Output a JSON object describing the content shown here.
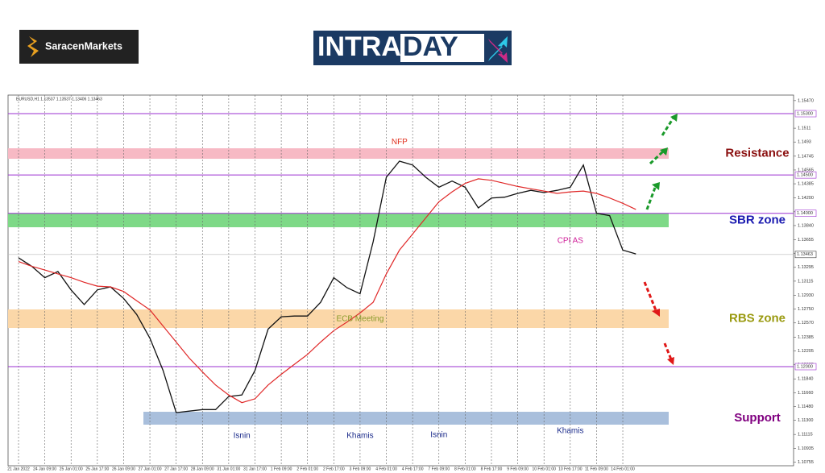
{
  "header": {
    "broker_logo": "SaracenMarkets",
    "brand_left": "INTRA",
    "brand_right": "DAY"
  },
  "chart_data": {
    "type": "line",
    "title": "EURUSD,H1 1.13537 1.13537 1.13406 1.13463",
    "categories": [
      "21 Jan 2022",
      null,
      "24 Jan 09:00",
      null,
      "25 Jan 01:00",
      null,
      "25 Jan 17:00",
      null,
      "26 Jan 09:00",
      null,
      "27 Jan 01:00",
      null,
      "27 Jan 17:00",
      null,
      "28 Jan 09:00",
      null,
      "31 Jan 01:00",
      null,
      "31 Jan 17:00",
      null,
      "1 Feb 09:00",
      null,
      "2 Feb 01:00",
      null,
      "2 Feb 17:00",
      null,
      "3 Feb 09:00",
      null,
      "4 Feb 01:00",
      null,
      "4 Feb 17:00",
      null,
      "7 Feb 09:00",
      null,
      "8 Feb 01:00",
      null,
      "8 Feb 17:00",
      null,
      "9 Feb 09:00",
      null,
      "10 Feb 01:00",
      null,
      "10 Feb 17:00",
      null,
      "11 Feb 09:00",
      null,
      "14 Feb 01:00",
      null,
      null,
      null,
      null,
      null,
      null,
      null,
      null,
      null,
      null,
      null,
      null,
      null
    ],
    "series": [
      {
        "color": "#111111",
        "values": [
          1.1342,
          1.1331,
          1.1316,
          1.1324,
          1.13,
          1.1281,
          1.13,
          1.1304,
          1.1289,
          1.1268,
          1.1237,
          1.1195,
          1.114,
          1.1142,
          1.1144,
          1.1144,
          1.1161,
          1.1163,
          1.1195,
          1.1249,
          1.1265,
          1.1266,
          1.1266,
          1.1284,
          1.1316,
          1.1303,
          1.1295,
          1.1363,
          1.1447,
          1.1468,
          1.1463,
          1.1447,
          1.1434,
          1.1442,
          1.1434,
          1.1407,
          1.142,
          1.1421,
          1.1426,
          1.143,
          1.1427,
          1.143,
          1.1434,
          1.1463,
          1.14,
          1.1397,
          1.1352,
          1.1347,
          null,
          null,
          null,
          null,
          null,
          null,
          null,
          null,
          null,
          null,
          null,
          null
        ]
      },
      {
        "color": "#e02828",
        "values": [
          1.1337,
          1.1331,
          1.1326,
          1.1321,
          1.1316,
          1.131,
          1.1305,
          1.1304,
          1.1298,
          1.1286,
          1.1274,
          1.1253,
          1.1232,
          1.1211,
          1.1193,
          1.1176,
          1.1163,
          1.1153,
          1.1158,
          1.1176,
          1.119,
          1.1203,
          1.1216,
          1.1232,
          1.1247,
          1.1258,
          1.127,
          1.1284,
          1.1321,
          1.1352,
          1.1373,
          1.1394,
          1.1415,
          1.1428,
          1.1439,
          1.1445,
          1.1443,
          1.1439,
          1.1435,
          1.1432,
          1.1429,
          1.1426,
          1.1428,
          1.1429,
          1.1426,
          1.142,
          1.1413,
          1.1405,
          null,
          null,
          null,
          null,
          null,
          null,
          null,
          null,
          null,
          null,
          null,
          null
        ]
      }
    ],
    "ylim": [
      1.10707,
      1.15542
    ],
    "yticks": [
      {
        "value": 1.1547,
        "label": "1.15470"
      },
      1.1511,
      1.1493,
      1.14745,
      1.14565,
      1.14385,
      {
        "value": 1.142,
        "label": "1.14200"
      },
      {
        "value": 1.1402,
        "label": "1.14020"
      },
      {
        "value": 1.1384,
        "label": "1.13840"
      },
      1.13655,
      1.13475,
      1.13295,
      1.13115,
      {
        "value": 1.1293,
        "label": "1.12930"
      },
      {
        "value": 1.1275,
        "label": "1.12750"
      },
      {
        "value": 1.1257,
        "label": "1.12570"
      },
      1.12385,
      1.12205,
      1.12025,
      {
        "value": 1.1184,
        "label": "1.11840"
      },
      {
        "value": 1.1166,
        "label": "1.11660"
      },
      {
        "value": 1.1148,
        "label": "1.11480"
      },
      {
        "value": 1.113,
        "label": "1.11300"
      },
      1.11115,
      1.10935,
      1.10755
    ],
    "levels": [
      {
        "value": 1.153,
        "label": "1.15300"
      },
      {
        "value": 1.145,
        "label": "1.14500"
      },
      {
        "value": 1.14,
        "label": "1.14000"
      },
      {
        "value": 1.12,
        "label": "1.12000"
      }
    ],
    "level_color": "#9b30d0",
    "current_price": 1.13463,
    "zones": [
      {
        "label": "Resistance",
        "from": 1.14711,
        "to": 1.14848,
        "color": "#f7b9c4",
        "label_color": "#8b1010"
      },
      {
        "label": "SBR zone",
        "from": 1.13818,
        "to": 1.13997,
        "color": "#7ed987",
        "label_color": "#1a1ab0"
      },
      {
        "label": "RBS zone",
        "from": 1.12504,
        "to": 1.12746,
        "color": "#fbd7a8",
        "label_color": "#9a9a10"
      },
      {
        "label": "Support",
        "from": 1.11243,
        "to": 1.11411,
        "color": "#a9bfdc",
        "label_color": "#800080"
      }
    ],
    "annotations": [
      {
        "text": "NFP",
        "category": 29,
        "price": 1.1493,
        "color": "#e0301e"
      },
      {
        "text": "CPI AS",
        "category": 42,
        "price": 1.1364,
        "color": "#d0209a"
      },
      {
        "text": "ECB Meeting",
        "category": 26,
        "price": 1.1262,
        "color": "#8a9a2a"
      },
      {
        "text": "Isnin",
        "category": 17,
        "price": 1.111,
        "color": "#1a2a8a"
      },
      {
        "text": "Khamis",
        "category": 26,
        "price": 1.111,
        "color": "#1a2a8a"
      },
      {
        "text": "Isnin",
        "category": 32,
        "price": 1.1111,
        "color": "#1a2a8a"
      },
      {
        "text": "Khamis",
        "category": 42,
        "price": 1.1116,
        "color": "#1a2a8a"
      }
    ],
    "grid": true
  }
}
